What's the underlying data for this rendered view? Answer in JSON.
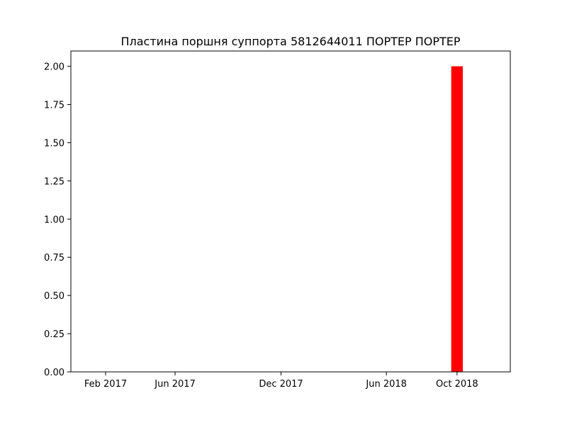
{
  "chart_data": {
    "type": "bar",
    "title": "Пластина поршня суппорта 5812644011 ПОРТЕР ПОРТЕР",
    "xlabel": "",
    "ylabel": "",
    "x_axis": {
      "type": "date",
      "range": [
        "2016-12-03",
        "2019-01-01"
      ],
      "ticks": [
        {
          "date": "2017-02-01",
          "label": "Feb 2017"
        },
        {
          "date": "2017-06-01",
          "label": "Jun 2017"
        },
        {
          "date": "2017-12-01",
          "label": "Dec 2017"
        },
        {
          "date": "2018-06-01",
          "label": "Jun 2018"
        },
        {
          "date": "2018-10-01",
          "label": "Oct 2018"
        }
      ]
    },
    "y_axis": {
      "range": [
        0,
        2.1
      ],
      "ticks": [
        {
          "value": 0,
          "label": "0.00"
        },
        {
          "value": 0.25,
          "label": "0.25"
        },
        {
          "value": 0.5,
          "label": "0.50"
        },
        {
          "value": 0.75,
          "label": "0.75"
        },
        {
          "value": 1,
          "label": "1.00"
        },
        {
          "value": 1.25,
          "label": "1.25"
        },
        {
          "value": 1.5,
          "label": "1.50"
        },
        {
          "value": 1.75,
          "label": "1.75"
        },
        {
          "value": 2,
          "label": "2.00"
        }
      ]
    },
    "grid": false,
    "legend": "none",
    "bars": [
      {
        "x": "2018-10-01",
        "value": 2,
        "color": "#ff0000"
      }
    ]
  }
}
